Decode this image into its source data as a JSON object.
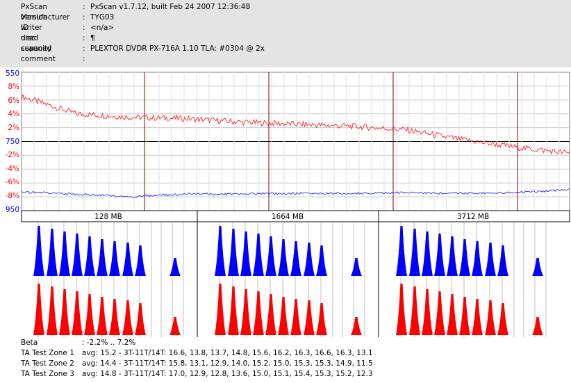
{
  "header": {
    "rows": [
      {
        "label": "PxScan version",
        "value": "PxScan v1.7.12, built Feb 24 2007 12:36:48"
      },
      {
        "label": "Manufacturer ID",
        "value": "TYG03"
      },
      {
        "label": "writer used",
        "value": "<n/a>"
      },
      {
        "label": "disc capacity",
        "value": "¶"
      },
      {
        "label": "scanned",
        "value": "PLEXTOR DVDR PX-716A 1.10 TLA: #0304 @ 2x"
      },
      {
        "label": "comment",
        "value": ""
      }
    ],
    "colon": ":"
  },
  "graph": {
    "left_axis_blue": [
      "550",
      "750",
      "950"
    ],
    "left_axis_red": [
      "8%",
      "6%",
      "4%",
      "2%",
      "-2%",
      "-4%",
      "-6%",
      "-8%"
    ],
    "zones": [
      "128 MB",
      "1664 MB",
      "3712 MB"
    ],
    "colors": {
      "beta": "#ff0000",
      "jitter": "#0000ff",
      "grid": "#c8c8c8",
      "marker": "#800000"
    }
  },
  "chart_data": {
    "type": "line",
    "series": [
      {
        "color": "#ff0000",
        "x": [
          0,
          0.1,
          0.2,
          0.3,
          0.4,
          0.5,
          0.6,
          0.7,
          0.8,
          0.9,
          1.0
        ],
        "values": [
          6.5,
          4.0,
          3.5,
          3.3,
          2.8,
          2.5,
          2.2,
          1.7,
          0.3,
          -0.8,
          -1.7
        ]
      },
      {
        "color": "#0000ff",
        "x": [
          0,
          0.1,
          0.2,
          0.3,
          0.4,
          0.5,
          0.6,
          0.7,
          0.8,
          0.9,
          1.0
        ],
        "values": [
          -7.3,
          -7.6,
          -8.0,
          -7.6,
          -7.6,
          -7.5,
          -7.5,
          -7.4,
          -7.5,
          -7.4,
          -7.0
        ]
      }
    ],
    "ylim": [
      -10,
      10
    ]
  },
  "footer": {
    "rows": [
      {
        "label": "Beta",
        "value": ": -2.2% .. 7.2%"
      },
      {
        "label": "TA Test Zone 1",
        "value": "avg: 15.2 - 3T-11T/14T: 16.6, 13.8, 13.7, 14.8, 15.6, 16.2, 16.3, 16.6, 16.3, 13.1"
      },
      {
        "label": "TA Test Zone 2",
        "value": "avg: 14.4 - 3T-11T/14T: 15.8, 13.1, 12.9, 14.0, 15.2, 15.0, 15.3, 15.3, 14.9, 11.5"
      },
      {
        "label": "TA Test Zone 3",
        "value": "avg: 14.8 - 3T-11T/14T: 17.0, 12.9, 12.8, 13.6, 15.0, 15.1, 15.4, 15.3, 15.2, 12.3"
      }
    ]
  }
}
